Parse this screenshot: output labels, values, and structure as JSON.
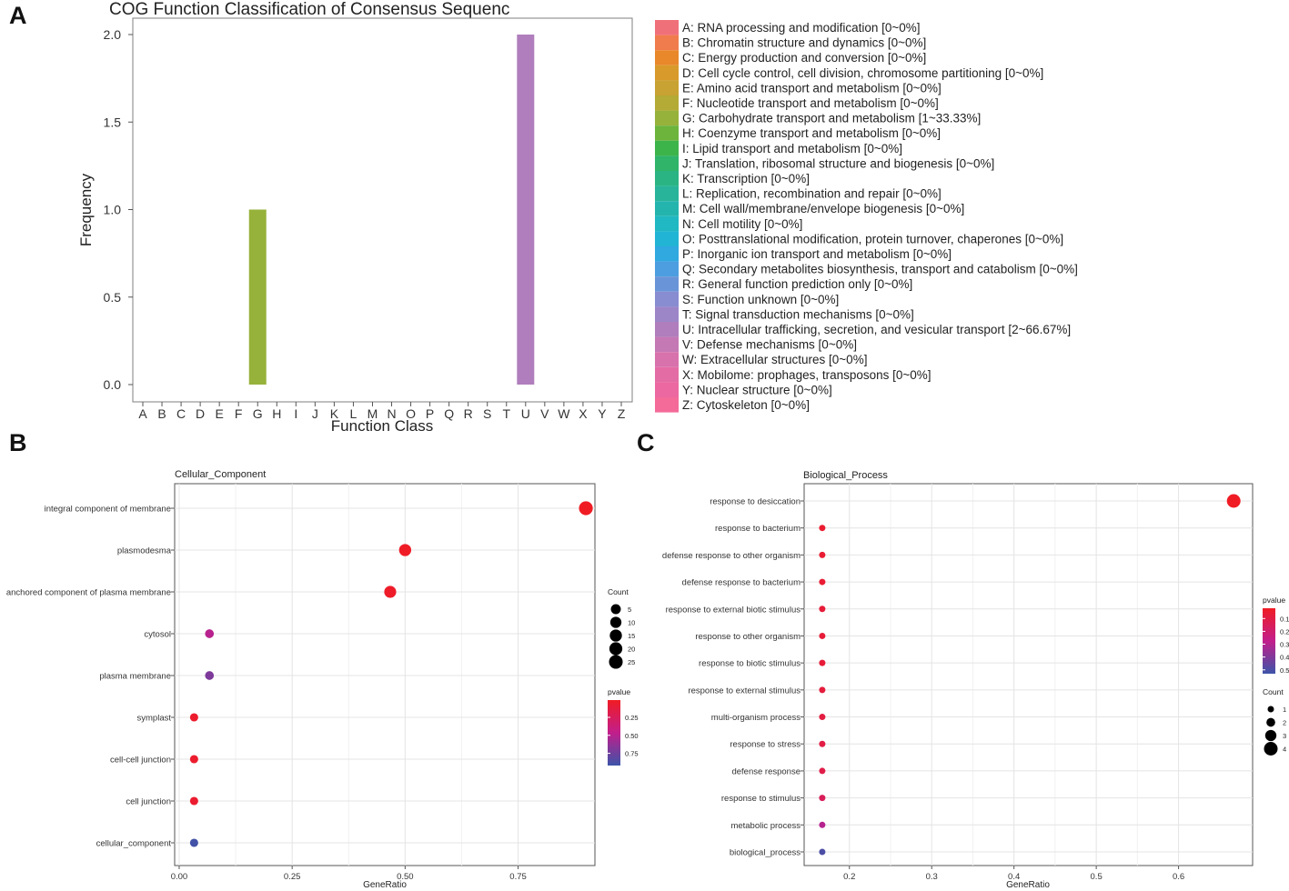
{
  "panel_labels": [
    "A",
    "B",
    "C"
  ],
  "chart_data": [
    {
      "panel": "A",
      "type": "bar",
      "title": "COG Function Classification of Consensus Sequenc",
      "xlabel": "Function Class",
      "ylabel": "Frequency",
      "ylim": [
        0,
        2
      ],
      "yticks": [
        "0.0",
        "0.5",
        "1.0",
        "1.5",
        "2.0"
      ],
      "ytick_values": [
        0,
        0.5,
        1,
        1.5,
        2
      ],
      "grid": false,
      "categories": [
        "A",
        "B",
        "C",
        "D",
        "E",
        "F",
        "G",
        "H",
        "I",
        "J",
        "K",
        "L",
        "M",
        "N",
        "O",
        "P",
        "Q",
        "R",
        "S",
        "T",
        "U",
        "V",
        "W",
        "X",
        "Y",
        "Z"
      ],
      "values": [
        0,
        0,
        0,
        0,
        0,
        0,
        1,
        0,
        0,
        0,
        0,
        0,
        0,
        0,
        0,
        0,
        0,
        0,
        0,
        0,
        2,
        0,
        0,
        0,
        0,
        0
      ],
      "legend": [
        {
          "label": "A: RNA processing and modification [0~0%]",
          "color": "#f0707a"
        },
        {
          "label": "B: Chromatin structure and dynamics [0~0%]",
          "color": "#f07c4e"
        },
        {
          "label": "C: Energy production and conversion [0~0%]",
          "color": "#e8882a"
        },
        {
          "label": "D: Cell cycle control, cell division, chromosome partitioning [0~0%]",
          "color": "#d89a2a"
        },
        {
          "label": "E: Amino acid transport and metabolism [0~0%]",
          "color": "#c8a232"
        },
        {
          "label": "F: Nucleotide transport and metabolism [0~0%]",
          "color": "#b4aa36"
        },
        {
          "label": "G: Carbohydrate transport and metabolism [1~33.33%]",
          "color": "#96b23a"
        },
        {
          "label": "H: Coenzyme transport and metabolism [0~0%]",
          "color": "#6cb43c"
        },
        {
          "label": "I: Lipid transport and metabolism [0~0%]",
          "color": "#3cb44a"
        },
        {
          "label": "J: Translation, ribosomal structure and biogenesis [0~0%]",
          "color": "#2fb46a"
        },
        {
          "label": "K: Transcription [0~0%]",
          "color": "#2ab484"
        },
        {
          "label": "L: Replication, recombination and repair [0~0%]",
          "color": "#28b49a"
        },
        {
          "label": "M: Cell wall/membrane/envelope biogenesis [0~0%]",
          "color": "#24b4ae"
        },
        {
          "label": "N: Cell motility [0~0%]",
          "color": "#20b8c2"
        },
        {
          "label": "O: Posttranslational modification, protein turnover, chaperones [0~0%]",
          "color": "#22b4d4"
        },
        {
          "label": "P: Inorganic ion transport and metabolism [0~0%]",
          "color": "#30a8e0"
        },
        {
          "label": "Q: Secondary metabolites biosynthesis, transport and catabolism [0~0%]",
          "color": "#4c9ee0"
        },
        {
          "label": "R: General function prediction only [0~0%]",
          "color": "#6a94d8"
        },
        {
          "label": "S: Function unknown [0~0%]",
          "color": "#888cd0"
        },
        {
          "label": "T: Signal transduction mechanisms [0~0%]",
          "color": "#9c86c8"
        },
        {
          "label": "U: Intracellular trafficking, secretion, and vesicular transport [2~66.67%]",
          "color": "#b07ebc"
        },
        {
          "label": "V: Defense mechanisms [0~0%]",
          "color": "#c478b4"
        },
        {
          "label": "W: Extracellular structures [0~0%]",
          "color": "#d872ac"
        },
        {
          "label": "X: Mobilome: prophages, transposons [0~0%]",
          "color": "#e46ca4"
        },
        {
          "label": "Y: Nuclear structure [0~0%]",
          "color": "#ec68a0"
        },
        {
          "label": "Z: Cytoskeleton [0~0%]",
          "color": "#f46a98"
        }
      ]
    },
    {
      "panel": "B",
      "type": "scatter",
      "title": "Cellular_Component",
      "xlabel": "GeneRatio",
      "ylabel": "",
      "xlim": [
        -0.01,
        0.92
      ],
      "xticks": [
        "0.00",
        "0.25",
        "0.50",
        "0.75"
      ],
      "xtick_values": [
        0,
        0.25,
        0.5,
        0.75
      ],
      "grid": true,
      "points": [
        {
          "term": "integral component of membrane",
          "generatio": 0.9,
          "count": 26,
          "pvalue": 0.01
        },
        {
          "term": "plasmodesma",
          "generatio": 0.5,
          "count": 15,
          "pvalue": 0.02
        },
        {
          "term": "anchored component of plasma membrane",
          "generatio": 0.467,
          "count": 14,
          "pvalue": 0.03
        },
        {
          "term": "cytosol",
          "generatio": 0.067,
          "count": 2,
          "pvalue": 0.5
        },
        {
          "term": "plasma membrane",
          "generatio": 0.067,
          "count": 2,
          "pvalue": 0.7
        },
        {
          "term": "symplast",
          "generatio": 0.033,
          "count": 1,
          "pvalue": 0.05
        },
        {
          "term": "cell-cell junction",
          "generatio": 0.033,
          "count": 1,
          "pvalue": 0.05
        },
        {
          "term": "cell junction",
          "generatio": 0.033,
          "count": 1,
          "pvalue": 0.06
        },
        {
          "term": "cellular_component",
          "generatio": 0.033,
          "count": 1,
          "pvalue": 0.9
        }
      ],
      "size_legend": {
        "title": "Count",
        "values": [
          5,
          10,
          15,
          20,
          25
        ]
      },
      "color_legend": {
        "title": "pvalue",
        "ticks": [
          "0.25",
          "0.50",
          "0.75"
        ],
        "tick_values": [
          0.25,
          0.5,
          0.75
        ],
        "range": [
          0.01,
          0.92
        ],
        "low_color": "#f01c24",
        "high_color": "#3c54a8"
      }
    },
    {
      "panel": "C",
      "type": "scatter",
      "title": "Biological_Process",
      "xlabel": "GeneRatio",
      "ylabel": "",
      "xlim": [
        0.145,
        0.69
      ],
      "xticks": [
        "0.2",
        "0.3",
        "0.4",
        "0.5",
        "0.6"
      ],
      "xtick_values": [
        0.2,
        0.3,
        0.4,
        0.5,
        0.6
      ],
      "grid": true,
      "points": [
        {
          "term": "response to desiccation",
          "generatio": 0.667,
          "count": 4,
          "pvalue": 0.02
        },
        {
          "term": "response to bacterium",
          "generatio": 0.167,
          "count": 1,
          "pvalue": 0.05
        },
        {
          "term": "defense response to other organism",
          "generatio": 0.167,
          "count": 1,
          "pvalue": 0.06
        },
        {
          "term": "defense response to bacterium",
          "generatio": 0.167,
          "count": 1,
          "pvalue": 0.06
        },
        {
          "term": "response to external biotic stimulus",
          "generatio": 0.167,
          "count": 1,
          "pvalue": 0.07
        },
        {
          "term": "response to other organism",
          "generatio": 0.167,
          "count": 1,
          "pvalue": 0.07
        },
        {
          "term": "response to biotic stimulus",
          "generatio": 0.167,
          "count": 1,
          "pvalue": 0.07
        },
        {
          "term": "response to external stimulus",
          "generatio": 0.167,
          "count": 1,
          "pvalue": 0.08
        },
        {
          "term": "multi-organism process",
          "generatio": 0.167,
          "count": 1,
          "pvalue": 0.09
        },
        {
          "term": "response to stress",
          "generatio": 0.167,
          "count": 1,
          "pvalue": 0.1
        },
        {
          "term": "defense response",
          "generatio": 0.167,
          "count": 1,
          "pvalue": 0.11
        },
        {
          "term": "response to stimulus",
          "generatio": 0.167,
          "count": 1,
          "pvalue": 0.15
        },
        {
          "term": "metabolic process",
          "generatio": 0.167,
          "count": 1,
          "pvalue": 0.3
        },
        {
          "term": "biological_process",
          "generatio": 0.167,
          "count": 1,
          "pvalue": 0.5
        }
      ],
      "size_legend": {
        "title": "Count",
        "values": [
          1,
          2,
          3,
          4
        ]
      },
      "color_legend": {
        "title": "pvalue",
        "ticks": [
          "0.1",
          "0.2",
          "0.3",
          "0.4",
          "0.5"
        ],
        "tick_values": [
          0.1,
          0.2,
          0.3,
          0.4,
          0.5
        ],
        "range": [
          0.02,
          0.53
        ],
        "low_color": "#f01c24",
        "high_color": "#3c54a8"
      }
    }
  ]
}
